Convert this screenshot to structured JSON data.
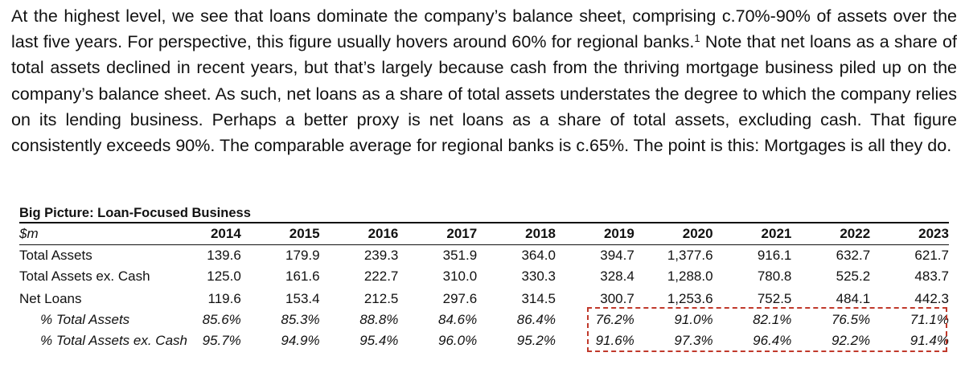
{
  "paragraph": {
    "part1": "At the highest level, we see that loans dominate the company’s balance sheet, comprising c.70%-90% of assets over the last five years. For perspective, this figure usually hovers around 60% for regional banks.",
    "footnote_marker": "1",
    "part2": " Note that net loans as a share of total assets declined in recent years, but that’s largely because cash from the thriving mortgage business piled up on the company’s balance sheet. As such, net loans as a share of total assets understates the degree to which the company relies on its lending business. Perhaps a better proxy is net loans as a share of total assets, excluding cash. That figure consistently exceeds 90%. The comparable average for regional banks is c.65%. The point is this: Mortgages is all they do."
  },
  "table": {
    "title": "Big Picture: Loan-Focused Business",
    "unit_label": "$m",
    "years": [
      "2014",
      "2015",
      "2016",
      "2017",
      "2018",
      "2019",
      "2020",
      "2021",
      "2022",
      "2023"
    ],
    "rows": [
      {
        "label": "Total Assets",
        "values": [
          "139.6",
          "179.9",
          "239.3",
          "351.9",
          "364.0",
          "394.7",
          "1,377.6",
          "916.1",
          "632.7",
          "621.7"
        ]
      },
      {
        "label": "Total Assets ex. Cash",
        "values": [
          "125.0",
          "161.6",
          "222.7",
          "310.0",
          "330.3",
          "328.4",
          "1,288.0",
          "780.8",
          "525.2",
          "483.7"
        ]
      },
      {
        "label": "Net Loans",
        "values": [
          "119.6",
          "153.4",
          "212.5",
          "297.6",
          "314.5",
          "300.7",
          "1,253.6",
          "752.5",
          "484.1",
          "442.3"
        ]
      },
      {
        "label": "% Total Assets",
        "values": [
          "85.6%",
          "85.3%",
          "88.8%",
          "84.6%",
          "86.4%",
          "76.2%",
          "91.0%",
          "82.1%",
          "76.5%",
          "71.1%"
        ]
      },
      {
        "label": "% Total Assets ex. Cash",
        "values": [
          "95.7%",
          "94.9%",
          "95.4%",
          "96.0%",
          "95.2%",
          "91.6%",
          "97.3%",
          "96.4%",
          "92.2%",
          "91.4%"
        ]
      }
    ],
    "highlight_color": "#c0392b"
  }
}
